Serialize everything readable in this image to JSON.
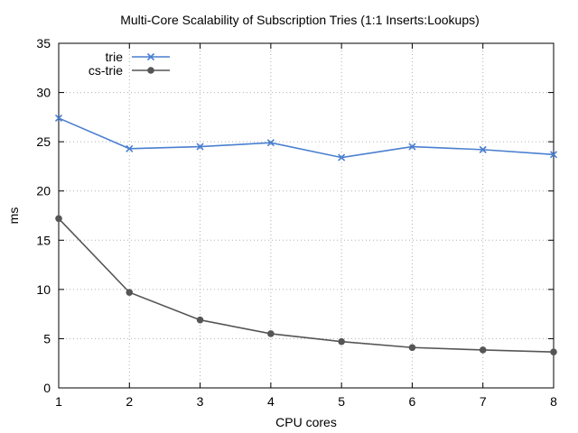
{
  "chart_data": {
    "type": "line",
    "title": "Multi-Core Scalability of Subscription Tries (1:1 Inserts:Lookups)",
    "xlabel": "CPU cores",
    "ylabel": "ms",
    "x": [
      1,
      2,
      3,
      4,
      5,
      6,
      7,
      8
    ],
    "xlim": [
      1,
      8
    ],
    "ylim": [
      0,
      35
    ],
    "yticks": [
      0,
      5,
      10,
      15,
      20,
      25,
      30,
      35
    ],
    "grid": true,
    "legend_position": "top-left",
    "series": [
      {
        "name": "trie",
        "color": "#4a7fd0",
        "marker": "x",
        "values": [
          27.4,
          24.3,
          24.5,
          24.9,
          23.4,
          24.5,
          24.2,
          23.7
        ]
      },
      {
        "name": "cs-trie",
        "color": "#555555",
        "marker": "circle",
        "values": [
          17.2,
          9.7,
          6.9,
          5.5,
          4.7,
          4.1,
          3.85,
          3.65
        ]
      }
    ]
  }
}
